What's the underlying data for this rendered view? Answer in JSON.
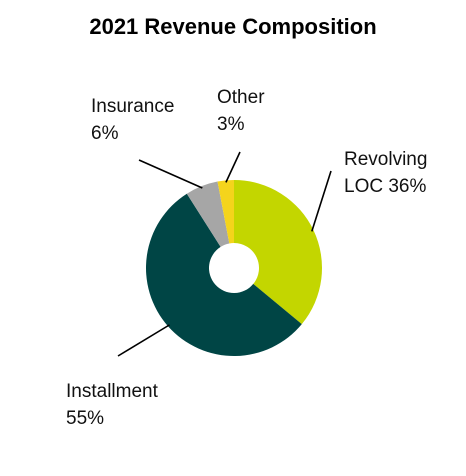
{
  "chart_data": {
    "type": "pie",
    "title": "2021 Revenue Composition",
    "categories": [
      "Revolving LOC",
      "Installment",
      "Insurance",
      "Other"
    ],
    "values": [
      36,
      55,
      6,
      3
    ],
    "labels": [
      {
        "line1": "Revolving",
        "line2": "LOC 36%"
      },
      {
        "line1": "Installment",
        "line2": "55%"
      },
      {
        "line1": "Insurance",
        "line2": "6%"
      },
      {
        "line1": "Other",
        "line2": "3%"
      }
    ],
    "colors": [
      "#c3d600",
      "#004545",
      "#a6a6a6",
      "#f4d41c"
    ],
    "donut": true,
    "legend": "none"
  }
}
